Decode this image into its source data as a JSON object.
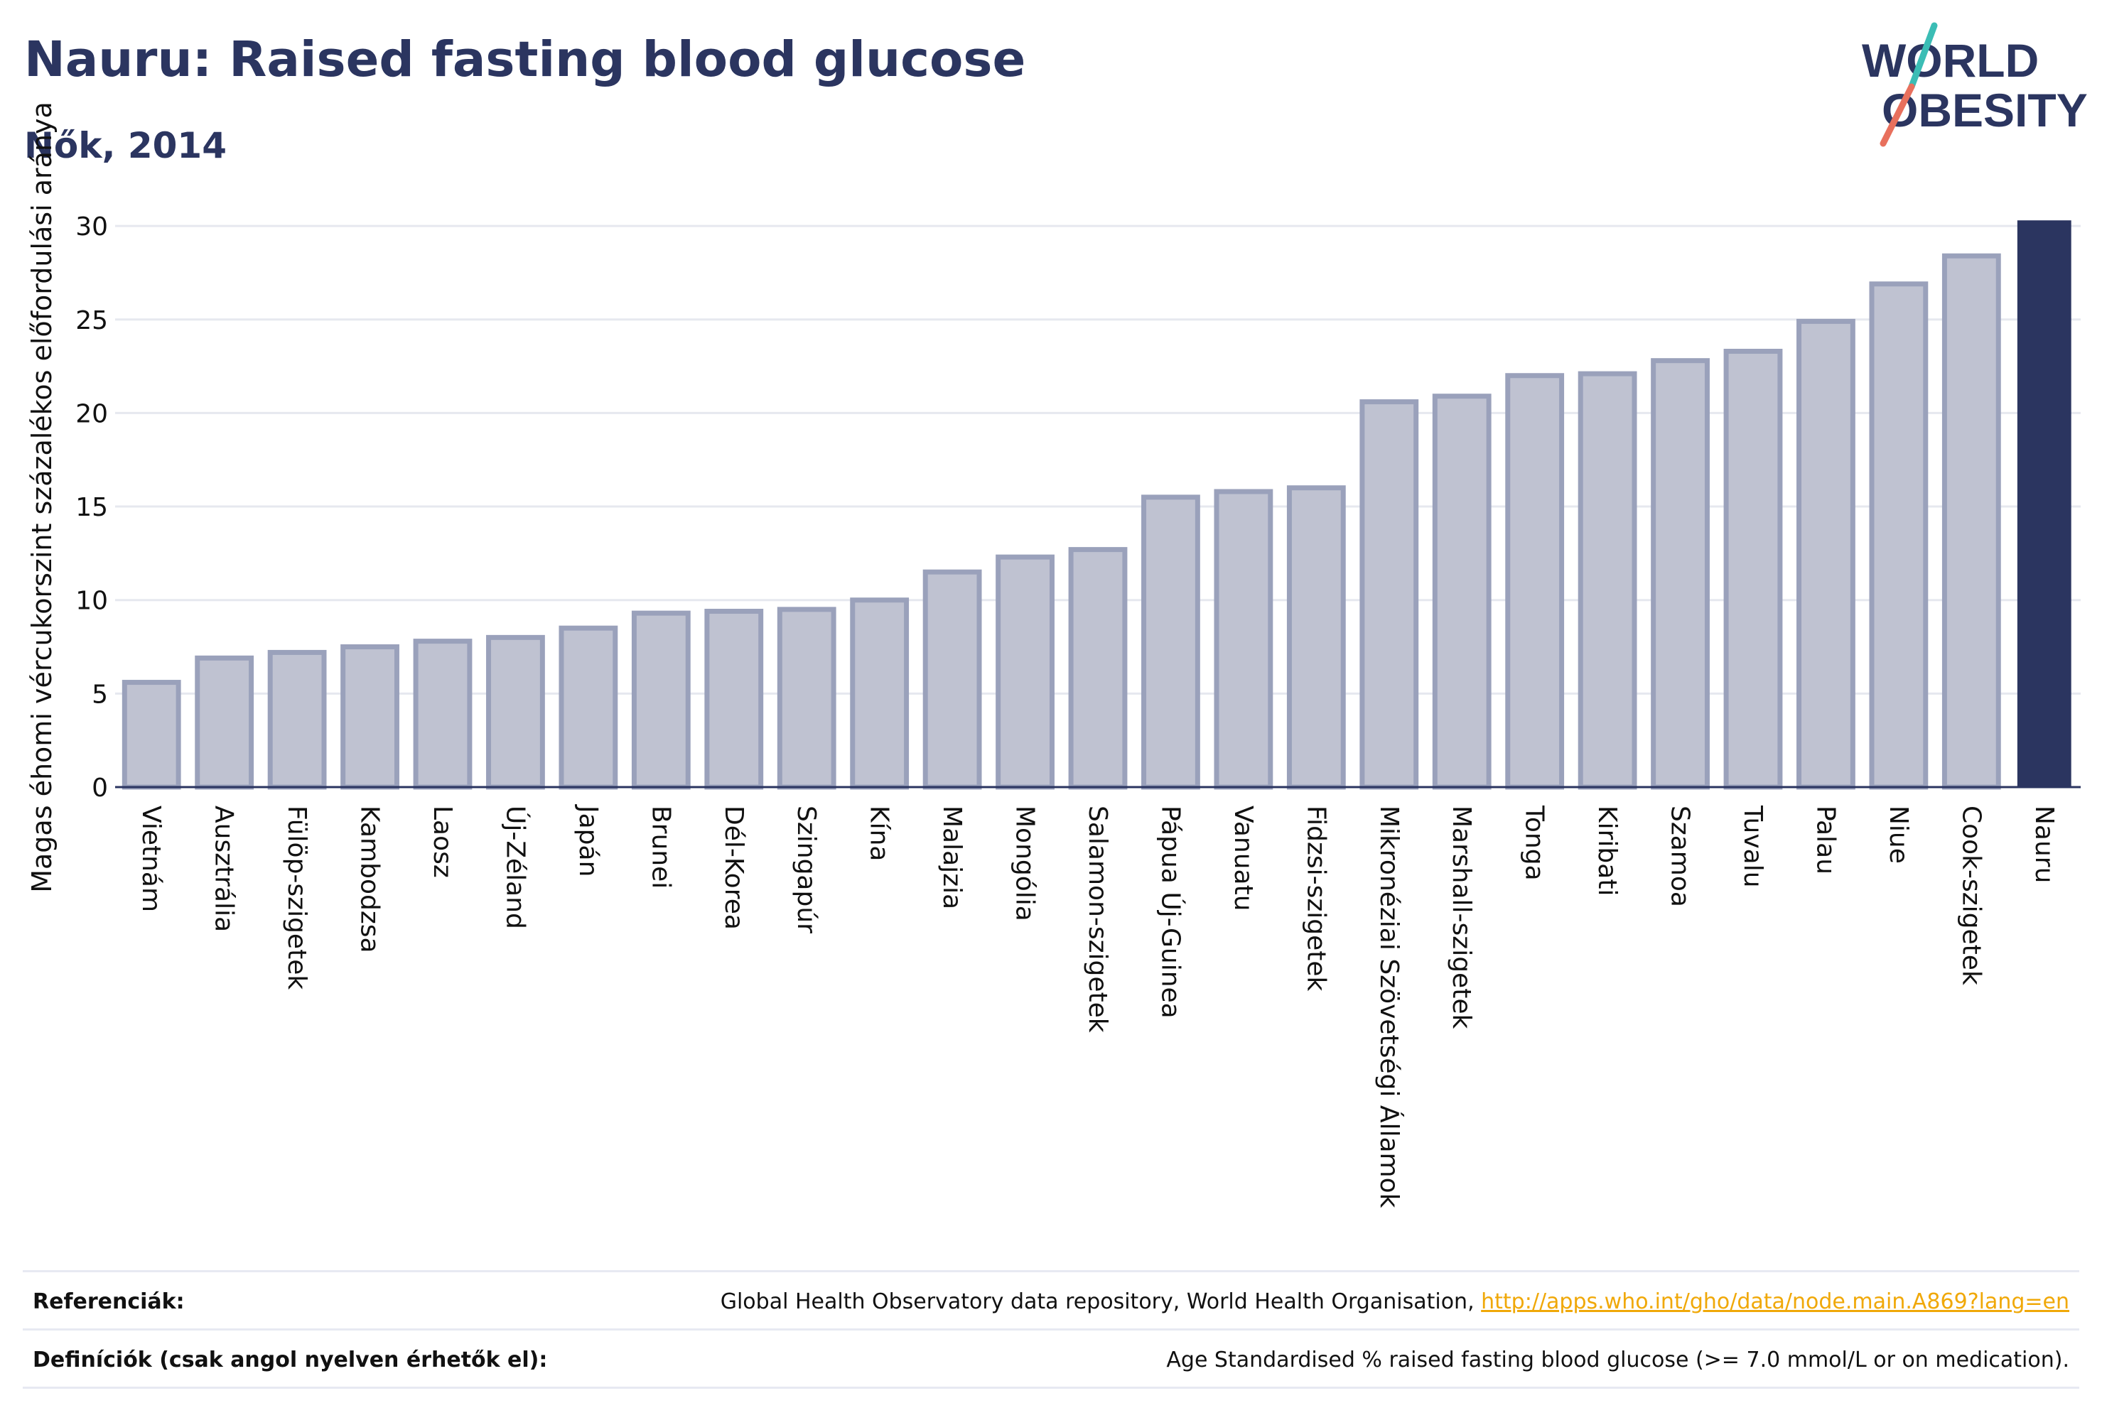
{
  "header": {
    "title": "Nauru: Raised fasting blood glucose",
    "subtitle": "Nők, 2014"
  },
  "logo": {
    "line1": "WORLD",
    "line2": "OBESITY"
  },
  "colors": {
    "bar_fill": "#bfc2d1",
    "bar_border": "#9aa1bb",
    "highlight": "#2b3560",
    "grid": "#e6e8ef",
    "link": "#f0a808",
    "logo_teal": "#3bbdb5",
    "logo_coral": "#e8705d"
  },
  "chart_data": {
    "type": "bar",
    "title": "Nauru: Raised fasting blood glucose",
    "subtitle": "Nők, 2014",
    "ylabel": "Magas éhomi vércukorszint százalékos előfordulási aránya",
    "xlabel": "",
    "ylim": [
      0,
      32
    ],
    "yticks": [
      0,
      5,
      10,
      15,
      20,
      25,
      30
    ],
    "grid": true,
    "highlight": "Nauru",
    "categories": [
      "Vietnám",
      "Ausztrália",
      "Fülöp-szigetek",
      "Kambodzsa",
      "Laosz",
      "Új-Zéland",
      "Japán",
      "Brunei",
      "Dél-Korea",
      "Szingapúr",
      "Kína",
      "Malajzia",
      "Mongólia",
      "Salamon-szigetek",
      "Pápua Új-Guinea",
      "Vanuatu",
      "Fidzsi-szigetek",
      "Mikronéziai Szövetségi Államok",
      "Marshall-szigetek",
      "Tonga",
      "Kiribati",
      "Szamoa",
      "Tuvalu",
      "Palau",
      "Niue",
      "Cook-szigetek",
      "Nauru"
    ],
    "values": [
      5.6,
      6.9,
      7.2,
      7.5,
      7.8,
      8.0,
      8.5,
      9.3,
      9.4,
      9.5,
      10.0,
      11.5,
      12.3,
      12.7,
      15.5,
      15.8,
      16.0,
      20.6,
      20.9,
      22.0,
      22.1,
      22.8,
      23.3,
      24.9,
      26.9,
      28.4,
      30.3
    ]
  },
  "footer": {
    "references_label": "Referenciák:",
    "references_text": "Global Health Observatory data repository, World Health Organisation, ",
    "references_link": "http://apps.who.int/gho/data/node.main.A869?lang=en",
    "definitions_label": "Definíciók (csak angol nyelven érhetők el):",
    "definitions_text": "Age Standardised % raised fasting blood glucose (>= 7.0 mmol/L or on medication)."
  }
}
